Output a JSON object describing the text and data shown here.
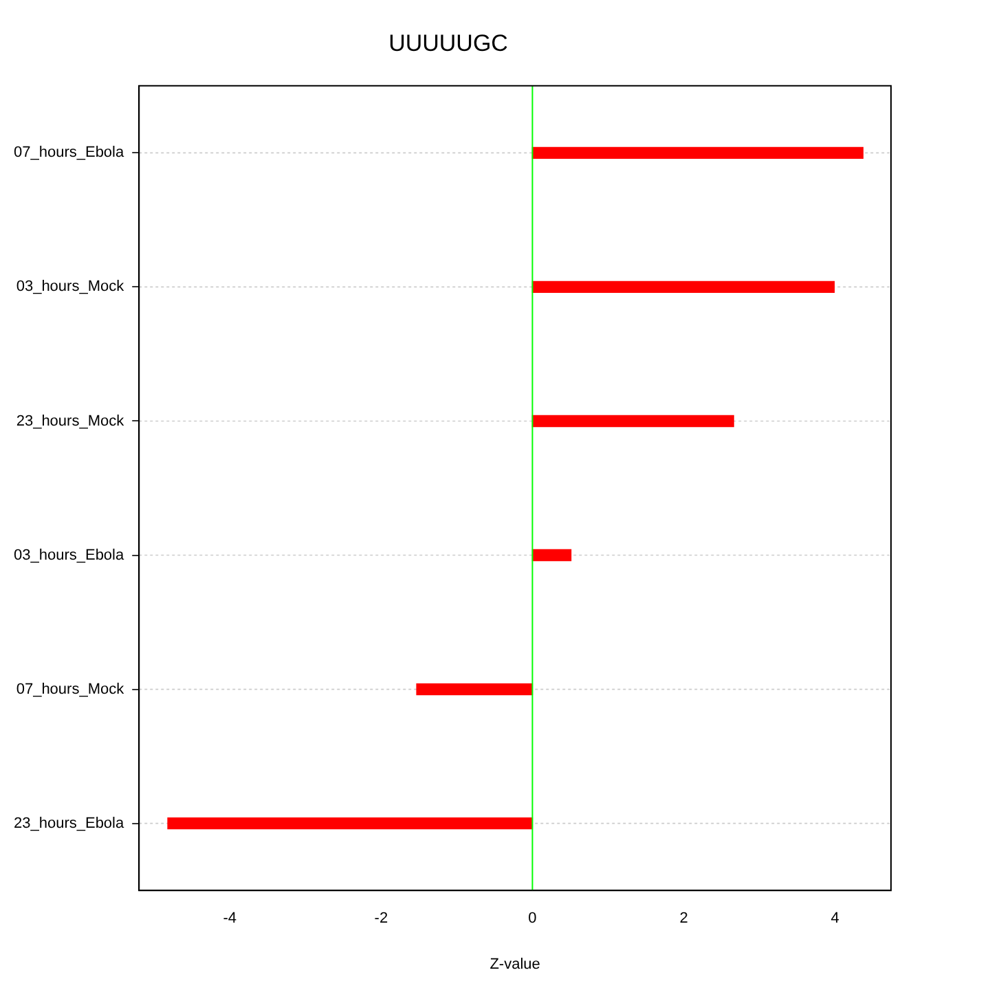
{
  "chart_data": {
    "type": "bar",
    "orientation": "horizontal",
    "title": "UUUUUGC",
    "xlabel": "Z-value",
    "categories": [
      "07_hours_Ebola",
      "03_hours_Mock",
      "23_hours_Mock",
      "03_hours_Ebola",
      "07_hours_Mock",
      "23_hours_Ebola"
    ],
    "values": [
      4.37,
      3.99,
      2.66,
      0.51,
      -1.53,
      -4.82
    ],
    "color": "#ff0000",
    "xlim": [
      -5.2,
      4.74
    ],
    "xticks": [
      -4,
      -2,
      0,
      2,
      4
    ],
    "grid": "y",
    "ref_lines": [
      {
        "axis": "x",
        "value": 0,
        "color": "#00ff00"
      }
    ]
  }
}
